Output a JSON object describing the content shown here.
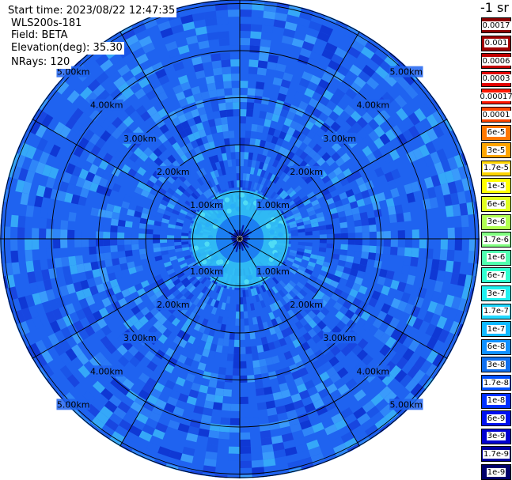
{
  "header": {
    "start_time": "Start time: 2023/08/22 12:47:35",
    "instrument": "WLS200s-181",
    "field": "Field: BETA",
    "elevation": "Elevation(deg): 35.30",
    "nrays": "NRays: 120"
  },
  "colorbar": {
    "unit": "-1 sr",
    "entries": [
      {
        "label": "0.0017",
        "color": "#8b0000"
      },
      {
        "label": "0.001",
        "color": "#a00000"
      },
      {
        "label": "0.0006",
        "color": "#c00000"
      },
      {
        "label": "0.0003",
        "color": "#e00000"
      },
      {
        "label": "0.00017",
        "color": "#ff1800"
      },
      {
        "label": "0.0001",
        "color": "#ff4500"
      },
      {
        "label": "6e-5",
        "color": "#ff7700"
      },
      {
        "label": "3e-5",
        "color": "#ffa500"
      },
      {
        "label": "1.7e-5",
        "color": "#ffd400"
      },
      {
        "label": "1e-5",
        "color": "#ffff00"
      },
      {
        "label": "6e-6",
        "color": "#e0ff20"
      },
      {
        "label": "3e-6",
        "color": "#b0ff50"
      },
      {
        "label": "1.7e-6",
        "color": "#80ff80"
      },
      {
        "label": "1e-6",
        "color": "#50ffb0"
      },
      {
        "label": "6e-7",
        "color": "#30ffd0"
      },
      {
        "label": "3e-7",
        "color": "#20f0f0"
      },
      {
        "label": "1.7e-7",
        "color": "#20d8ff"
      },
      {
        "label": "1e-7",
        "color": "#10b8ff"
      },
      {
        "label": "6e-8",
        "color": "#1090ff"
      },
      {
        "label": "3e-8",
        "color": "#1070f0"
      },
      {
        "label": "1.7e-8",
        "color": "#0050ff"
      },
      {
        "label": "1e-8",
        "color": "#0030ff"
      },
      {
        "label": "6e-9",
        "color": "#0010f0"
      },
      {
        "label": "3e-9",
        "color": "#0000d0"
      },
      {
        "label": "1.7e-9",
        "color": "#0000a0"
      },
      {
        "label": "1e-9",
        "color": "#00006a"
      }
    ]
  },
  "chart_data": {
    "type": "heatmap",
    "projection": "polar (PPI scan)",
    "field": "BETA",
    "range_rings_km": [
      1,
      2,
      3,
      4,
      5
    ],
    "ring_labels": [
      "1.00km",
      "2.00km",
      "3.00km",
      "4.00km",
      "5.00km"
    ],
    "max_range_km": 6.2,
    "azimuth_spokes": 12,
    "nrays": 120,
    "dominant_value_range": [
      "3e-8",
      "1.7e-7"
    ],
    "near_range_ring_value": "3e-7",
    "colors": {
      "background": "#1f63f0",
      "low": "#0d3fd8",
      "high": "#2b9cff",
      "ring_cyan": "#33c8f5",
      "grid": "#000000"
    }
  }
}
